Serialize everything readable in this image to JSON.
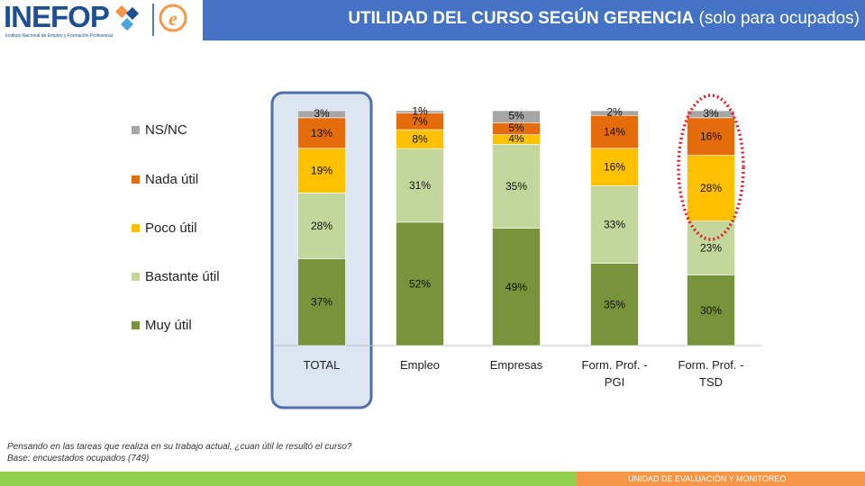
{
  "header": {
    "logo_text": "INEFOP",
    "logo_subtitle": "Instituto Nacional de Empleo y Formación Profesional",
    "title_bold": "UTILIDAD DEL CURSO SEGÚN GERENCIA",
    "title_rest": " (solo para ocupados)"
  },
  "colors": {
    "header_blue": "#4472c4",
    "muy_util": "#77933c",
    "bastante_util": "#c3d69b",
    "poco_util": "#ffc000",
    "nada_util": "#e46c0a",
    "ns_nc": "#a6a6a6",
    "highlight_fill": "#dce6f2",
    "highlight_border": "#4f6fa8",
    "red_dotted": "#e0202a",
    "footer_green": "#92d050",
    "footer_orange": "#f79646"
  },
  "chart_data": {
    "type": "bar",
    "stacked": true,
    "percent_stacked": true,
    "categories": [
      "TOTAL",
      "Empleo",
      "Empresas",
      "Form. Prof. - PGI",
      "Form. Prof. - TSD"
    ],
    "category_lines": [
      [
        "TOTAL"
      ],
      [
        "Empleo"
      ],
      [
        "Empresas"
      ],
      [
        "Form. Prof. -",
        "PGI"
      ],
      [
        "Form. Prof. -",
        "TSD"
      ]
    ],
    "series": [
      {
        "name": "Muy útil",
        "values": [
          37,
          52,
          49,
          35,
          30
        ],
        "labels": [
          "37%",
          "52%",
          "49%",
          "35%",
          "30%"
        ]
      },
      {
        "name": "Bastante útil",
        "values": [
          28,
          31,
          35,
          33,
          23
        ],
        "labels": [
          "28%",
          "31%",
          "35%",
          "33%",
          "23%"
        ]
      },
      {
        "name": "Poco útil",
        "values": [
          19,
          8,
          4,
          16,
          28
        ],
        "labels": [
          "19%",
          "8%",
          "4%",
          "16%",
          "28%"
        ]
      },
      {
        "name": "Nada útil",
        "values": [
          13,
          7,
          5,
          14,
          16
        ],
        "labels": [
          "13%",
          "7%",
          "5%",
          "14%",
          "16%"
        ]
      },
      {
        "name": "NS/NC",
        "values": [
          3,
          1,
          5,
          2,
          3
        ],
        "labels": [
          "3%",
          "1%",
          "5%",
          "2%",
          "3%"
        ]
      }
    ],
    "legend": [
      "NS/NC",
      "Nada útil",
      "Poco útil",
      "Bastante útil",
      "Muy útil"
    ],
    "legend_position": "left",
    "highlighted_category": "TOTAL",
    "circled_category": "Form. Prof. - TSD",
    "ylim": [
      0,
      100
    ]
  },
  "footnote": {
    "line1": "Pensando en las tareas que realiza en su trabajo actual, ¿cuan útil le resultó el curso?",
    "line2": "Base: encuestados ocupados (749)"
  },
  "footer": {
    "label": "UNIDAD DE EVALUACIÓN Y MONITOREO"
  }
}
